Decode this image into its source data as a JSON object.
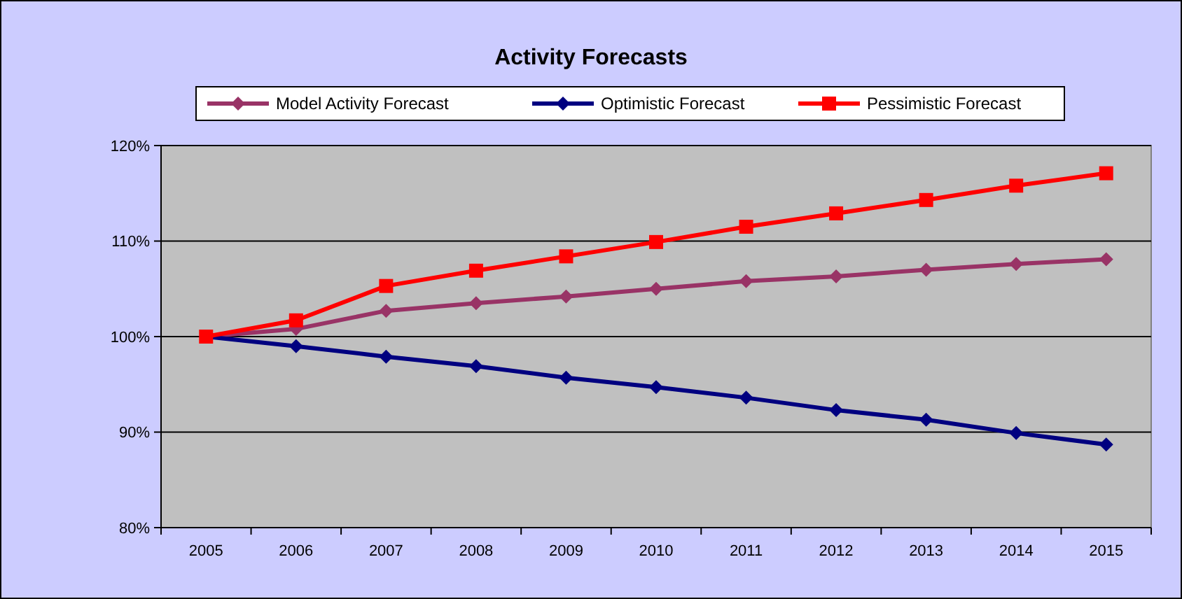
{
  "chart_data": {
    "type": "line",
    "title": "Activity Forecasts",
    "categories": [
      "2005",
      "2006",
      "2007",
      "2008",
      "2009",
      "2010",
      "2011",
      "2012",
      "2013",
      "2014",
      "2015"
    ],
    "series": [
      {
        "name": "Model Activity Forecast",
        "color": "#993366",
        "marker": "diamond",
        "values": [
          100,
          100.8,
          102.7,
          103.5,
          104.2,
          105.0,
          105.8,
          106.3,
          107.0,
          107.6,
          108.1
        ]
      },
      {
        "name": "Optimistic Forecast",
        "color": "#000080",
        "marker": "diamond",
        "values": [
          100,
          99.0,
          97.9,
          96.9,
          95.7,
          94.7,
          93.6,
          92.3,
          91.3,
          89.9,
          88.7
        ]
      },
      {
        "name": "Pessimistic Forecast",
        "color": "#ff0000",
        "marker": "square",
        "values": [
          100,
          101.7,
          105.3,
          106.9,
          108.4,
          109.9,
          111.5,
          112.9,
          114.3,
          115.8,
          117.1
        ]
      }
    ],
    "ylim": [
      80,
      120
    ],
    "yticks": [
      {
        "value": 80,
        "label": "80%"
      },
      {
        "value": 90,
        "label": "90%"
      },
      {
        "value": 100,
        "label": "100%"
      },
      {
        "value": 110,
        "label": "110%"
      },
      {
        "value": 120,
        "label": "120%"
      }
    ],
    "grid": "y",
    "legend": "top",
    "line_style": "solid"
  }
}
